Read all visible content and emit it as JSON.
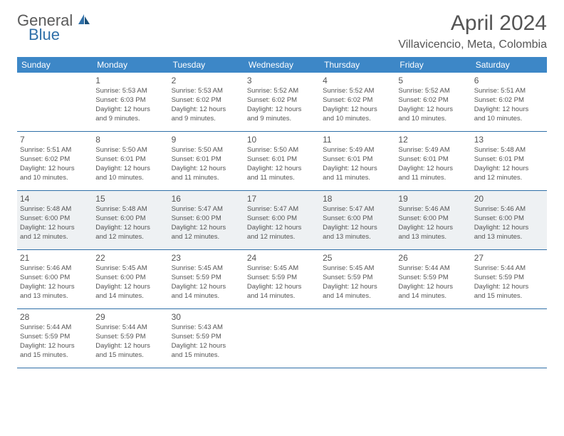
{
  "logo": {
    "text1": "General",
    "text2": "Blue"
  },
  "title": "April 2024",
  "location": "Villavicencio, Meta, Colombia",
  "colors": {
    "header_bg": "#3d87c7",
    "border": "#2f6fa8",
    "shade": "#eef1f3",
    "text": "#555555"
  },
  "day_names": [
    "Sunday",
    "Monday",
    "Tuesday",
    "Wednesday",
    "Thursday",
    "Friday",
    "Saturday"
  ],
  "weeks": [
    [
      {
        "day": "",
        "sunrise": "",
        "sunset": "",
        "daylight1": "",
        "daylight2": ""
      },
      {
        "day": "1",
        "sunrise": "Sunrise: 5:53 AM",
        "sunset": "Sunset: 6:03 PM",
        "daylight1": "Daylight: 12 hours",
        "daylight2": "and 9 minutes."
      },
      {
        "day": "2",
        "sunrise": "Sunrise: 5:53 AM",
        "sunset": "Sunset: 6:02 PM",
        "daylight1": "Daylight: 12 hours",
        "daylight2": "and 9 minutes."
      },
      {
        "day": "3",
        "sunrise": "Sunrise: 5:52 AM",
        "sunset": "Sunset: 6:02 PM",
        "daylight1": "Daylight: 12 hours",
        "daylight2": "and 9 minutes."
      },
      {
        "day": "4",
        "sunrise": "Sunrise: 5:52 AM",
        "sunset": "Sunset: 6:02 PM",
        "daylight1": "Daylight: 12 hours",
        "daylight2": "and 10 minutes."
      },
      {
        "day": "5",
        "sunrise": "Sunrise: 5:52 AM",
        "sunset": "Sunset: 6:02 PM",
        "daylight1": "Daylight: 12 hours",
        "daylight2": "and 10 minutes."
      },
      {
        "day": "6",
        "sunrise": "Sunrise: 5:51 AM",
        "sunset": "Sunset: 6:02 PM",
        "daylight1": "Daylight: 12 hours",
        "daylight2": "and 10 minutes."
      }
    ],
    [
      {
        "day": "7",
        "sunrise": "Sunrise: 5:51 AM",
        "sunset": "Sunset: 6:02 PM",
        "daylight1": "Daylight: 12 hours",
        "daylight2": "and 10 minutes."
      },
      {
        "day": "8",
        "sunrise": "Sunrise: 5:50 AM",
        "sunset": "Sunset: 6:01 PM",
        "daylight1": "Daylight: 12 hours",
        "daylight2": "and 10 minutes."
      },
      {
        "day": "9",
        "sunrise": "Sunrise: 5:50 AM",
        "sunset": "Sunset: 6:01 PM",
        "daylight1": "Daylight: 12 hours",
        "daylight2": "and 11 minutes."
      },
      {
        "day": "10",
        "sunrise": "Sunrise: 5:50 AM",
        "sunset": "Sunset: 6:01 PM",
        "daylight1": "Daylight: 12 hours",
        "daylight2": "and 11 minutes."
      },
      {
        "day": "11",
        "sunrise": "Sunrise: 5:49 AM",
        "sunset": "Sunset: 6:01 PM",
        "daylight1": "Daylight: 12 hours",
        "daylight2": "and 11 minutes."
      },
      {
        "day": "12",
        "sunrise": "Sunrise: 5:49 AM",
        "sunset": "Sunset: 6:01 PM",
        "daylight1": "Daylight: 12 hours",
        "daylight2": "and 11 minutes."
      },
      {
        "day": "13",
        "sunrise": "Sunrise: 5:48 AM",
        "sunset": "Sunset: 6:01 PM",
        "daylight1": "Daylight: 12 hours",
        "daylight2": "and 12 minutes."
      }
    ],
    [
      {
        "day": "14",
        "sunrise": "Sunrise: 5:48 AM",
        "sunset": "Sunset: 6:00 PM",
        "daylight1": "Daylight: 12 hours",
        "daylight2": "and 12 minutes."
      },
      {
        "day": "15",
        "sunrise": "Sunrise: 5:48 AM",
        "sunset": "Sunset: 6:00 PM",
        "daylight1": "Daylight: 12 hours",
        "daylight2": "and 12 minutes."
      },
      {
        "day": "16",
        "sunrise": "Sunrise: 5:47 AM",
        "sunset": "Sunset: 6:00 PM",
        "daylight1": "Daylight: 12 hours",
        "daylight2": "and 12 minutes."
      },
      {
        "day": "17",
        "sunrise": "Sunrise: 5:47 AM",
        "sunset": "Sunset: 6:00 PM",
        "daylight1": "Daylight: 12 hours",
        "daylight2": "and 12 minutes."
      },
      {
        "day": "18",
        "sunrise": "Sunrise: 5:47 AM",
        "sunset": "Sunset: 6:00 PM",
        "daylight1": "Daylight: 12 hours",
        "daylight2": "and 13 minutes."
      },
      {
        "day": "19",
        "sunrise": "Sunrise: 5:46 AM",
        "sunset": "Sunset: 6:00 PM",
        "daylight1": "Daylight: 12 hours",
        "daylight2": "and 13 minutes."
      },
      {
        "day": "20",
        "sunrise": "Sunrise: 5:46 AM",
        "sunset": "Sunset: 6:00 PM",
        "daylight1": "Daylight: 12 hours",
        "daylight2": "and 13 minutes."
      }
    ],
    [
      {
        "day": "21",
        "sunrise": "Sunrise: 5:46 AM",
        "sunset": "Sunset: 6:00 PM",
        "daylight1": "Daylight: 12 hours",
        "daylight2": "and 13 minutes."
      },
      {
        "day": "22",
        "sunrise": "Sunrise: 5:45 AM",
        "sunset": "Sunset: 6:00 PM",
        "daylight1": "Daylight: 12 hours",
        "daylight2": "and 14 minutes."
      },
      {
        "day": "23",
        "sunrise": "Sunrise: 5:45 AM",
        "sunset": "Sunset: 5:59 PM",
        "daylight1": "Daylight: 12 hours",
        "daylight2": "and 14 minutes."
      },
      {
        "day": "24",
        "sunrise": "Sunrise: 5:45 AM",
        "sunset": "Sunset: 5:59 PM",
        "daylight1": "Daylight: 12 hours",
        "daylight2": "and 14 minutes."
      },
      {
        "day": "25",
        "sunrise": "Sunrise: 5:45 AM",
        "sunset": "Sunset: 5:59 PM",
        "daylight1": "Daylight: 12 hours",
        "daylight2": "and 14 minutes."
      },
      {
        "day": "26",
        "sunrise": "Sunrise: 5:44 AM",
        "sunset": "Sunset: 5:59 PM",
        "daylight1": "Daylight: 12 hours",
        "daylight2": "and 14 minutes."
      },
      {
        "day": "27",
        "sunrise": "Sunrise: 5:44 AM",
        "sunset": "Sunset: 5:59 PM",
        "daylight1": "Daylight: 12 hours",
        "daylight2": "and 15 minutes."
      }
    ],
    [
      {
        "day": "28",
        "sunrise": "Sunrise: 5:44 AM",
        "sunset": "Sunset: 5:59 PM",
        "daylight1": "Daylight: 12 hours",
        "daylight2": "and 15 minutes."
      },
      {
        "day": "29",
        "sunrise": "Sunrise: 5:44 AM",
        "sunset": "Sunset: 5:59 PM",
        "daylight1": "Daylight: 12 hours",
        "daylight2": "and 15 minutes."
      },
      {
        "day": "30",
        "sunrise": "Sunrise: 5:43 AM",
        "sunset": "Sunset: 5:59 PM",
        "daylight1": "Daylight: 12 hours",
        "daylight2": "and 15 minutes."
      },
      {
        "day": "",
        "sunrise": "",
        "sunset": "",
        "daylight1": "",
        "daylight2": ""
      },
      {
        "day": "",
        "sunrise": "",
        "sunset": "",
        "daylight1": "",
        "daylight2": ""
      },
      {
        "day": "",
        "sunrise": "",
        "sunset": "",
        "daylight1": "",
        "daylight2": ""
      },
      {
        "day": "",
        "sunrise": "",
        "sunset": "",
        "daylight1": "",
        "daylight2": ""
      }
    ]
  ],
  "shaded_weeks": [
    2
  ]
}
